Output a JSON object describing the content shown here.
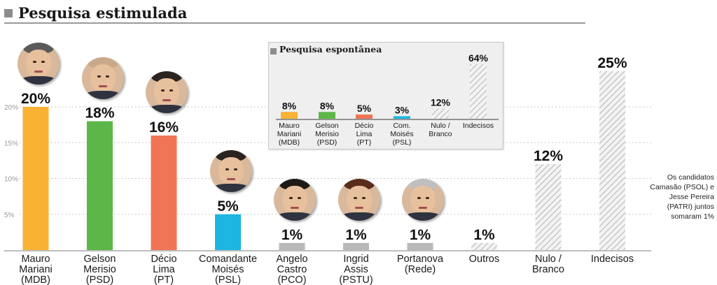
{
  "title": "Pesquisa estimulada",
  "side_note": "Os candidatos Camasão (PSOL) e Jesse Pereira (PATRI) juntos somaram 1%",
  "colors": {
    "mauro": "#f9b233",
    "gelson": "#5cb748",
    "decio": "#f07557",
    "moises": "#1cb6e0",
    "gray": "#b8b8b8",
    "hatch": "#c8c8c8",
    "axis": "#bdbdbd",
    "grid": "#c9c9c9"
  },
  "chart_data": [
    {
      "type": "bar",
      "title": "Pesquisa estimulada",
      "categories": [
        "Mauro Mariani (MDB)",
        "Gelson Merisio (PSD)",
        "Décio Lima (PT)",
        "Comandante Moisés (PSL)",
        "Angelo Castro (PCO)",
        "Ingrid Assis (PSTU)",
        "Portanova (Rede)",
        "Outros",
        "Nulo / Branco",
        "Indecisos"
      ],
      "category_lines": [
        [
          "Mauro",
          "Mariani",
          "(MDB)"
        ],
        [
          "Gelson",
          "Merisio",
          "(PSD)"
        ],
        [
          "Décio",
          "Lima",
          "(PT)"
        ],
        [
          "Comandante",
          "Moisés",
          "(PSL)"
        ],
        [
          "Angelo",
          "Castro",
          "(PCO)"
        ],
        [
          "Ingrid",
          "Assis",
          "(PSTU)"
        ],
        [
          "Portanova",
          "(Rede)"
        ],
        [
          "Outros"
        ],
        [
          "Nulo /",
          "Branco"
        ],
        [
          "Indecisos"
        ]
      ],
      "values": [
        20,
        18,
        16,
        5,
        1,
        1,
        1,
        1,
        12,
        25
      ],
      "value_labels": [
        "20%",
        "18%",
        "16%",
        "5%",
        "1%",
        "1%",
        "1%",
        "1%",
        "12%",
        "25%"
      ],
      "bar_styles": [
        "mauro",
        "gelson",
        "decio",
        "moises",
        "gray",
        "gray",
        "gray",
        "hatch",
        "hatch",
        "hatch"
      ],
      "has_photo": [
        true,
        true,
        true,
        true,
        true,
        true,
        true,
        false,
        false,
        false
      ],
      "yticks": [
        5,
        10,
        15,
        20
      ],
      "ytick_labels": [
        "5%",
        "10%",
        "15%",
        "20%"
      ],
      "ylim": [
        0,
        25
      ],
      "grid": true
    },
    {
      "type": "bar",
      "title": "Pesquisa espontânea",
      "categories": [
        "Mauro Mariani (MDB)",
        "Gelson Merisio (PSD)",
        "Décio Lima (PT)",
        "Com. Moisés (PSL)",
        "Nulo / Branco",
        "Indecisos"
      ],
      "category_lines": [
        [
          "Mauro",
          "Mariani",
          "(MDB)"
        ],
        [
          "Gelson",
          "Merisio",
          "(PSD)"
        ],
        [
          "Décio",
          "Lima",
          "(PT)"
        ],
        [
          "Com.",
          "Moisés",
          "(PSL)"
        ],
        [
          "Nulo /",
          "Branco"
        ],
        [
          "Indecisos"
        ]
      ],
      "values": [
        8,
        8,
        5,
        3,
        12,
        64
      ],
      "value_labels": [
        "8%",
        "8%",
        "5%",
        "3%",
        "12%",
        "64%"
      ],
      "bar_styles": [
        "mauro",
        "gelson",
        "decio",
        "moises",
        "hatch",
        "hatch"
      ],
      "ylim": [
        0,
        64
      ]
    }
  ]
}
